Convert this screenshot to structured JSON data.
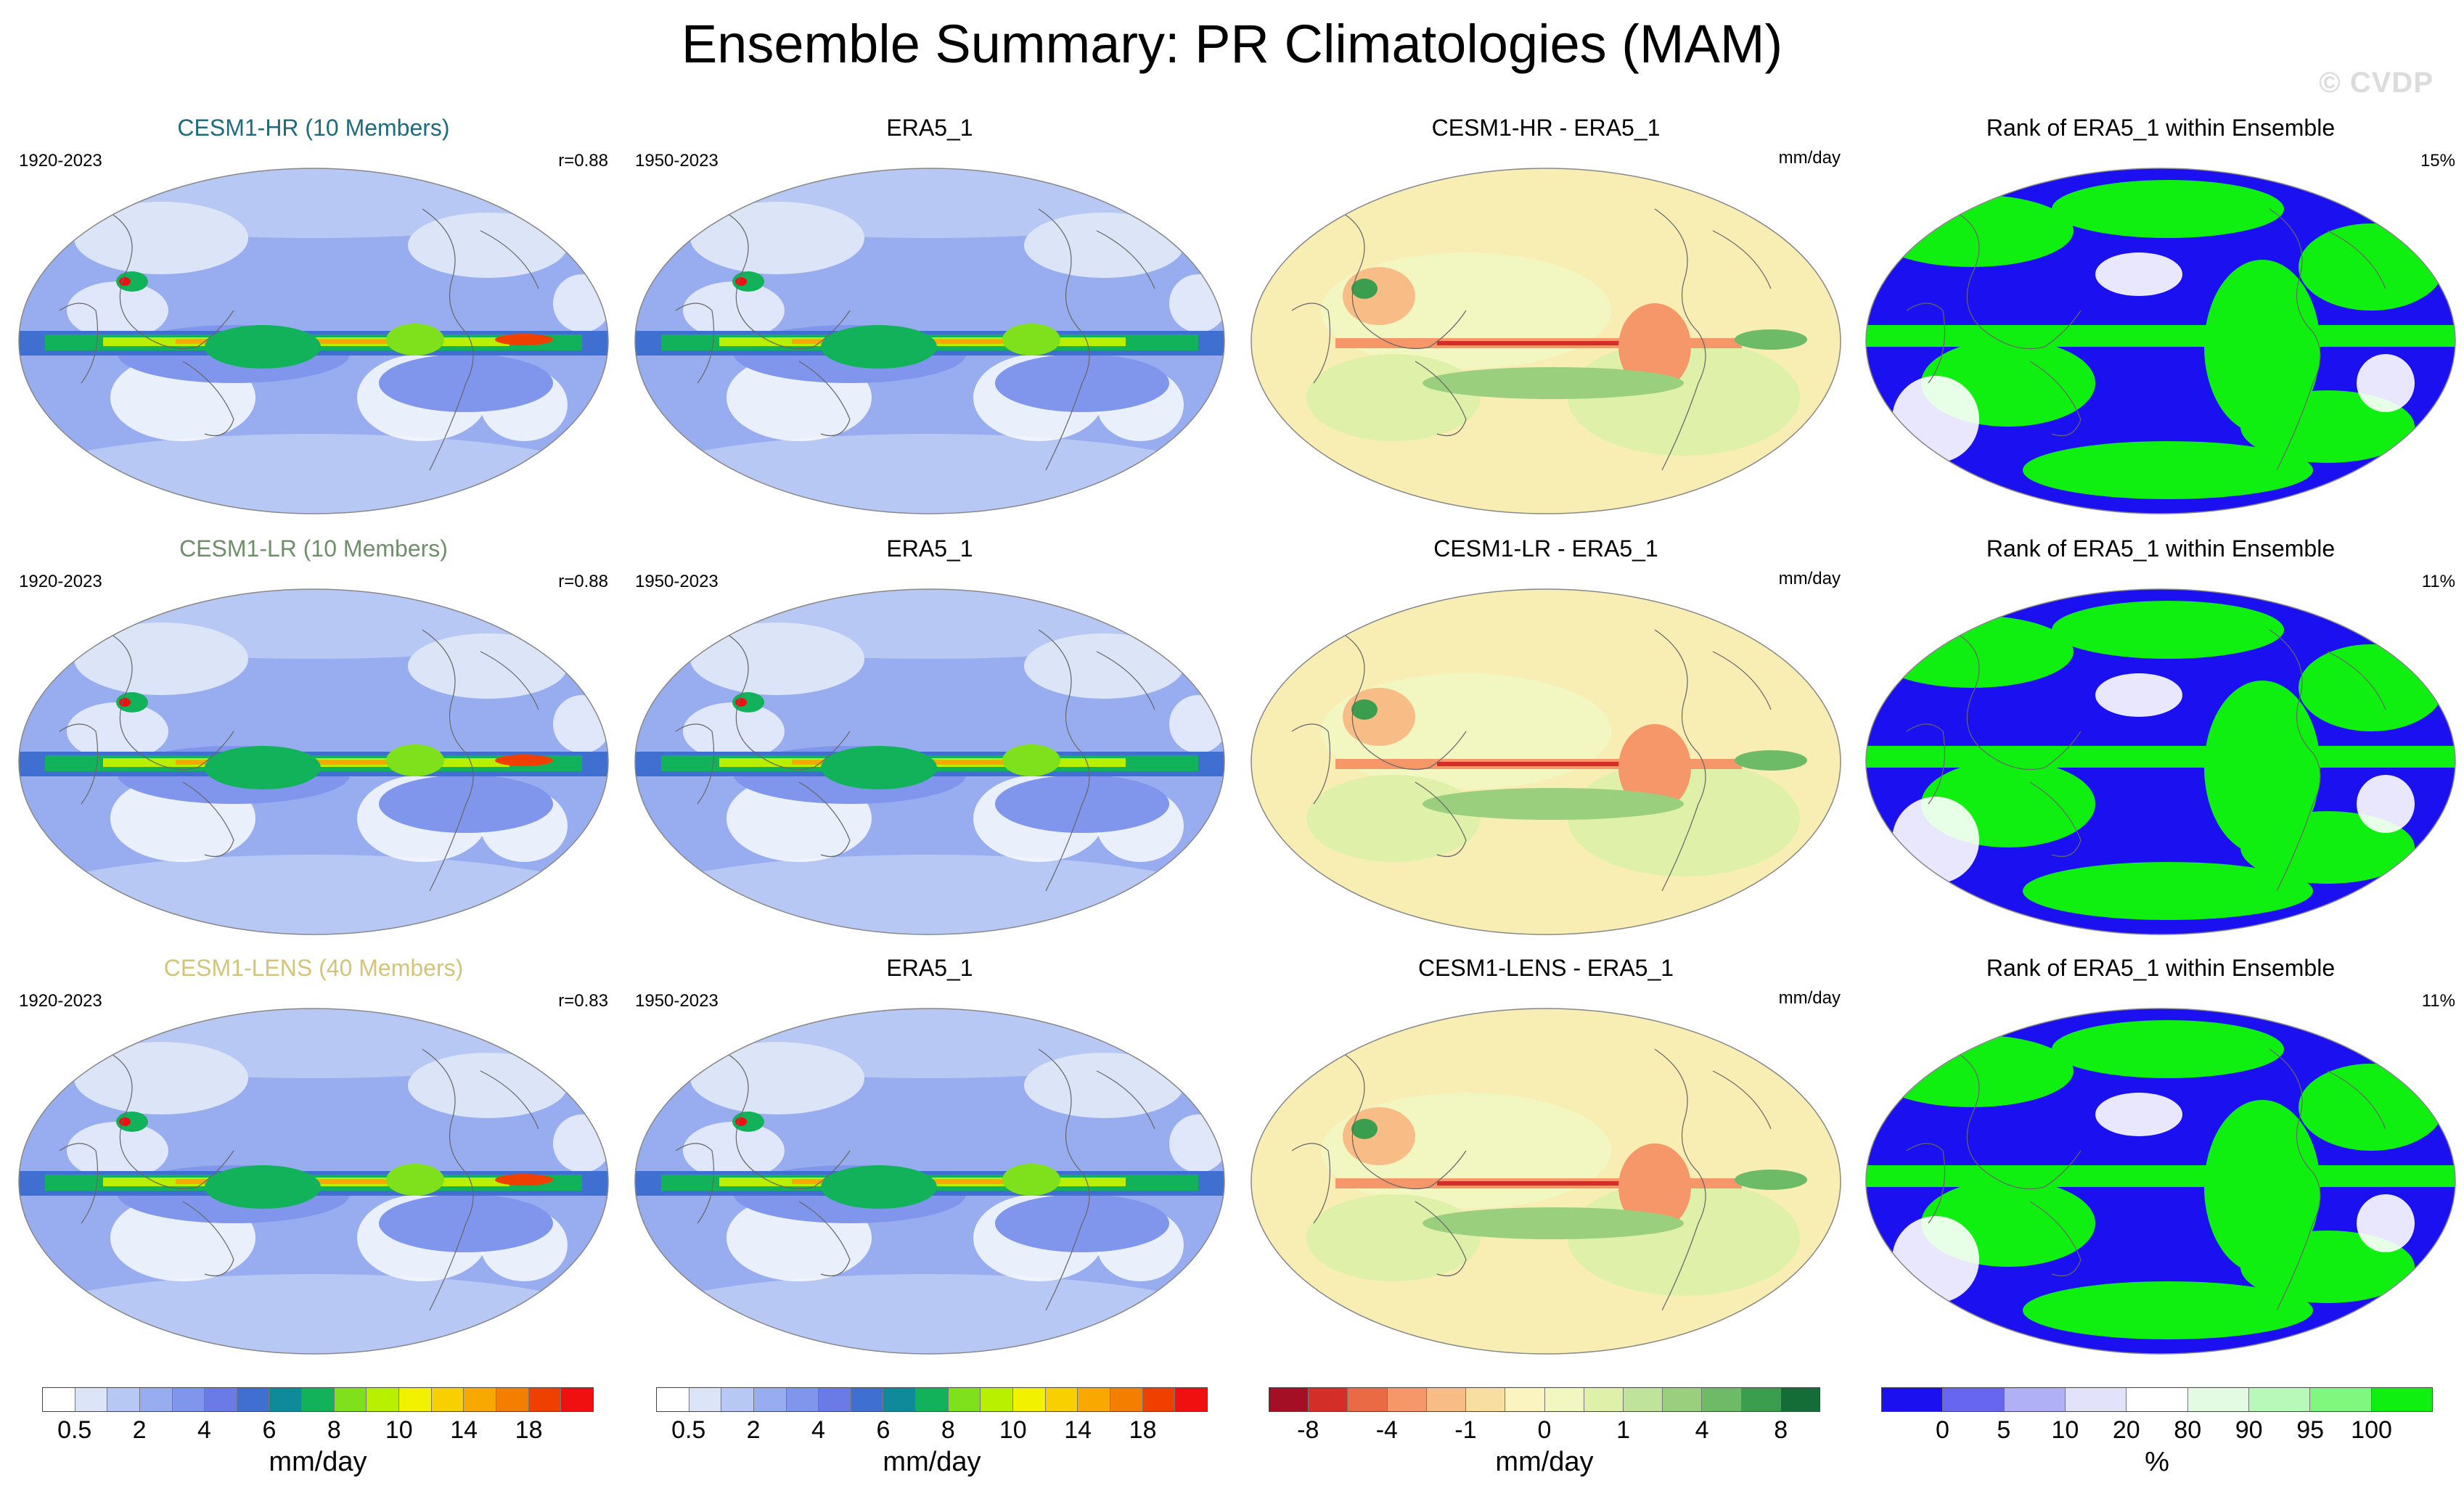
{
  "title": "Ensemble Summary: PR Climatologies (MAM)",
  "watermark": "© CVDP",
  "rows": [
    {
      "model": {
        "title": "CESM1-HR (10 Members)",
        "title_color": "#1f6b7d",
        "years": "1920-2023",
        "corr": "r=0.88"
      },
      "obs": {
        "title": "ERA5_1",
        "years": "1950-2023"
      },
      "diff": {
        "title": "CESM1-HR - ERA5_1",
        "units": "mm/day"
      },
      "rank": {
        "title": "Rank of ERA5_1 within Ensemble",
        "pct": "15%"
      }
    },
    {
      "model": {
        "title": "CESM1-LR (10 Members)",
        "title_color": "#6f8f6a",
        "years": "1920-2023",
        "corr": "r=0.88"
      },
      "obs": {
        "title": "ERA5_1",
        "years": "1950-2023"
      },
      "diff": {
        "title": "CESM1-LR - ERA5_1",
        "units": "mm/day"
      },
      "rank": {
        "title": "Rank of ERA5_1 within Ensemble",
        "pct": "11%"
      }
    },
    {
      "model": {
        "title": "CESM1-LENS (40 Members)",
        "title_color": "#d4c47a",
        "years": "1920-2023",
        "corr": "r=0.83"
      },
      "obs": {
        "title": "ERA5_1",
        "years": "1950-2023"
      },
      "diff": {
        "title": "CESM1-LENS - ERA5_1",
        "units": "mm/day"
      },
      "rank": {
        "title": "Rank of ERA5_1 within Ensemble",
        "pct": "11%"
      }
    }
  ],
  "colorbars": {
    "precip": {
      "colors": [
        "#ffffff",
        "#dce4f8",
        "#b8c8f4",
        "#98adf0",
        "#7f96ec",
        "#6a7ae6",
        "#3f6fd0",
        "#0f8a9a",
        "#12b25a",
        "#7fe01c",
        "#b8f000",
        "#f2f200",
        "#f8d000",
        "#f8a800",
        "#f47e00",
        "#f04000",
        "#f01010"
      ],
      "ticks": [
        "0.5",
        "2",
        "4",
        "6",
        "8",
        "10",
        "14",
        "18"
      ],
      "units": "mm/day"
    },
    "diff": {
      "colors": [
        "#a50f26",
        "#d42e28",
        "#ea6a45",
        "#f59768",
        "#f8bd86",
        "#f8dea0",
        "#fbf3c0",
        "#f2f6c0",
        "#dff0a8",
        "#bfe39a",
        "#9ad07d",
        "#6dbb66",
        "#3a9e4e",
        "#146c36"
      ],
      "ticks": [
        "-8",
        "-4",
        "-1",
        "0",
        "1",
        "4",
        "8"
      ],
      "units": "mm/day"
    },
    "rank": {
      "colors": [
        "#1a10f0",
        "#6666f0",
        "#b0b0f6",
        "#e2e2fa",
        "#ffffff",
        "#e2fbe2",
        "#b8f8b8",
        "#80f880",
        "#10f010"
      ],
      "ticks": [
        "0",
        "5",
        "10",
        "20",
        "80",
        "90",
        "95",
        "100"
      ],
      "units": "%"
    }
  }
}
